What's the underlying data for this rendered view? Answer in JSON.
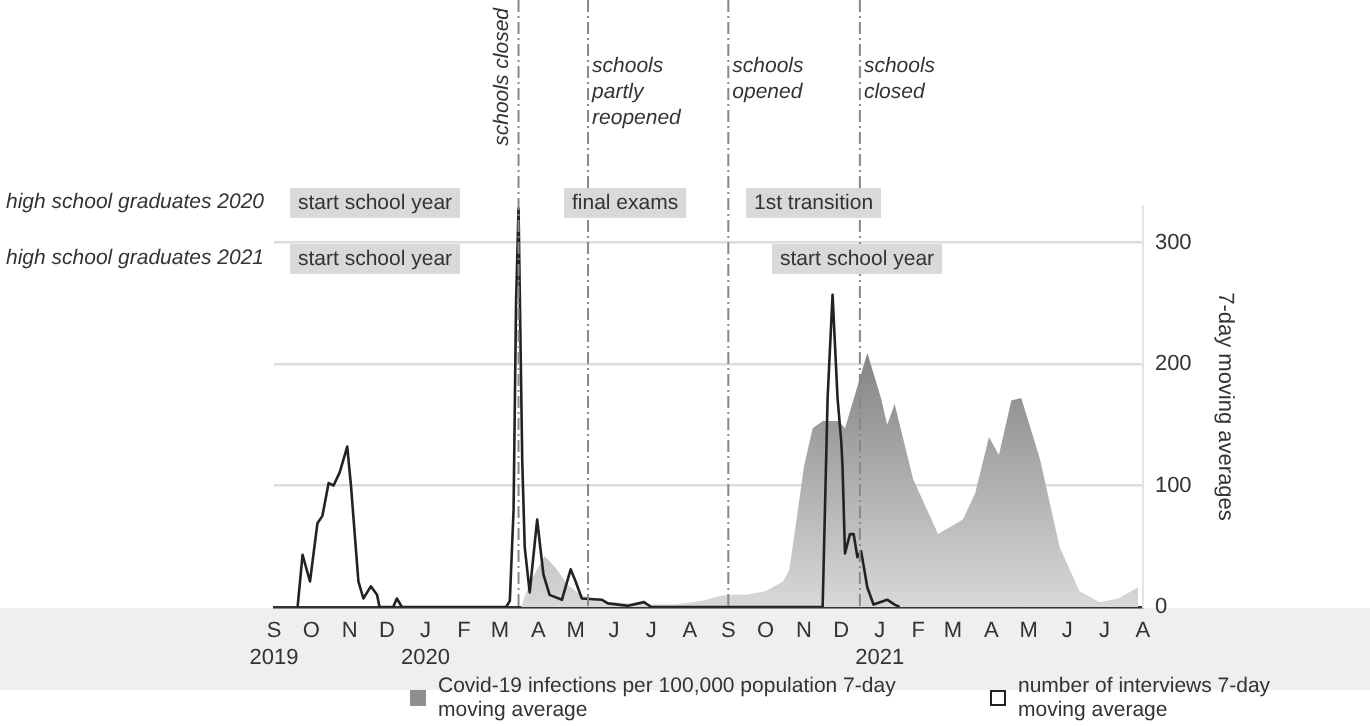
{
  "chart_data": {
    "type": "line",
    "ylabel": "7-day moving averages",
    "xlim": [
      "2019-09-01",
      "2021-08-01"
    ],
    "xticks": [
      {
        "value": "2019-09-01",
        "label": "S\n2019"
      },
      {
        "value": "2019-10-01",
        "label": "O"
      },
      {
        "value": "2019-11-01",
        "label": "N"
      },
      {
        "value": "2019-12-01",
        "label": "D"
      },
      {
        "value": "2020-01-01",
        "label": "J\n2020"
      },
      {
        "value": "2020-02-01",
        "label": "F"
      },
      {
        "value": "2020-03-01",
        "label": "M"
      },
      {
        "value": "2020-04-01",
        "label": "A"
      },
      {
        "value": "2020-05-01",
        "label": "M"
      },
      {
        "value": "2020-06-01",
        "label": "J"
      },
      {
        "value": "2020-07-01",
        "label": "J"
      },
      {
        "value": "2020-08-01",
        "label": "A"
      },
      {
        "value": "2020-09-01",
        "label": "S"
      },
      {
        "value": "2020-10-01",
        "label": "O"
      },
      {
        "value": "2020-11-01",
        "label": "N"
      },
      {
        "value": "2020-12-01",
        "label": "D"
      },
      {
        "value": "2021-01-01",
        "label": "J\n2021"
      },
      {
        "value": "2021-02-01",
        "label": "F"
      },
      {
        "value": "2021-03-01",
        "label": "M"
      },
      {
        "value": "2021-04-01",
        "label": "A"
      },
      {
        "value": "2021-05-01",
        "label": "M"
      },
      {
        "value": "2021-06-01",
        "label": "J"
      },
      {
        "value": "2021-07-01",
        "label": "J"
      },
      {
        "value": "2021-08-01",
        "label": "A"
      }
    ],
    "ylim": [
      0,
      330
    ],
    "yticks": [
      0,
      100,
      200,
      300
    ],
    "grid": "y",
    "legend": "bottom",
    "marker": "none",
    "series": [
      {
        "name": "Covid-19 infections per 100,000 population 7-day moving average",
        "type": "area",
        "color": "#8f8f8f",
        "x": [
          "2020-03-18",
          "2020-03-25",
          "2020-04-06",
          "2020-04-15",
          "2020-04-25",
          "2020-05-05",
          "2020-05-20",
          "2020-06-10",
          "2020-07-01",
          "2020-07-20",
          "2020-08-10",
          "2020-08-25",
          "2020-09-01",
          "2020-09-15",
          "2020-10-01",
          "2020-10-15",
          "2020-10-20",
          "2020-10-26",
          "2020-11-01",
          "2020-11-08",
          "2020-11-16",
          "2020-11-29",
          "2020-12-04",
          "2020-12-22",
          "2021-01-02",
          "2021-01-07",
          "2021-01-13",
          "2021-01-28",
          "2021-02-17",
          "2021-03-09",
          "2021-03-19",
          "2021-03-30",
          "2021-04-07",
          "2021-04-17",
          "2021-04-25",
          "2021-05-10",
          "2021-05-26",
          "2021-06-11",
          "2021-06-27",
          "2021-07-12",
          "2021-07-28"
        ],
        "values": [
          0,
          20,
          42,
          32,
          18,
          10,
          5,
          3,
          2,
          2,
          5,
          9,
          10,
          10,
          13,
          21,
          30,
          72,
          116,
          147,
          153,
          153,
          147,
          209,
          172,
          150,
          167,
          105,
          60,
          72,
          94,
          140,
          125,
          170,
          172,
          122,
          49,
          13,
          4,
          7,
          16
        ]
      },
      {
        "name": "number of interviews 7-day moving average",
        "type": "line",
        "color": "#222222",
        "x": [
          "2019-09-20",
          "2019-09-24",
          "2019-09-30",
          "2019-10-06",
          "2019-10-10",
          "2019-10-15",
          "2019-10-19",
          "2019-10-24",
          "2019-10-30",
          "2019-11-02",
          "2019-11-08",
          "2019-11-12",
          "2019-11-18",
          "2019-11-23",
          "2019-11-25",
          "2019-12-06",
          "2019-12-09",
          "2019-12-13",
          "2020-03-06",
          "2020-03-09",
          "2020-03-12",
          "2020-03-14",
          "2020-03-16",
          "2020-03-19",
          "2020-03-21",
          "2020-03-25",
          "2020-03-31",
          "2020-04-05",
          "2020-04-10",
          "2020-04-20",
          "2020-04-27",
          "2020-05-01",
          "2020-05-06",
          "2020-05-22",
          "2020-05-27",
          "2020-06-12",
          "2020-06-25",
          "2020-07-01",
          "2020-11-16",
          "2020-11-20",
          "2020-11-24",
          "2020-11-28",
          "2020-12-01",
          "2020-12-02",
          "2020-12-04",
          "2020-12-08",
          "2020-12-11",
          "2020-12-14",
          "2020-12-17",
          "2020-12-22",
          "2020-12-27",
          "2021-01-07",
          "2021-01-13",
          "2021-01-17"
        ],
        "values": [
          0,
          43,
          21,
          69,
          75,
          102,
          100,
          111,
          132,
          100,
          21,
          7,
          17,
          10,
          0,
          0,
          7,
          0,
          0,
          5,
          80,
          250,
          328,
          120,
          49,
          12,
          72,
          27,
          10,
          6,
          31,
          21,
          7,
          6,
          3,
          1,
          4,
          0,
          0,
          172,
          257,
          172,
          136,
          116,
          44,
          60,
          60,
          41,
          46,
          16,
          2,
          6,
          2,
          0
        ]
      }
    ],
    "ref_lines": [
      {
        "axis": "x",
        "value": "2020-03-16",
        "label": "schools closed",
        "color": "#888888",
        "line_style": "dashed"
      },
      {
        "axis": "x",
        "value": "2020-05-11",
        "label": "schools partly reopened",
        "color": "#888888",
        "line_style": "dashed"
      },
      {
        "axis": "x",
        "value": "2020-09-01",
        "label": "schools opened",
        "color": "#888888",
        "line_style": "dashed"
      },
      {
        "axis": "x",
        "value": "2020-12-16",
        "label": "schools closed",
        "color": "#888888",
        "line_style": "dashed"
      }
    ],
    "annotations": [
      "high school graduates 2020",
      "high school graduates 2021",
      "start school year",
      "final exams",
      "1st transition",
      "start school year",
      "start school year"
    ]
  }
}
